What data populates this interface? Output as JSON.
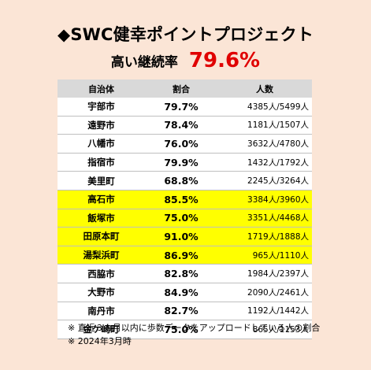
{
  "header": {
    "title": "◆SWC健幸ポイントプロジェクト",
    "subtitle_label": "高い継続率",
    "subtitle_rate": "79.6%"
  },
  "table": {
    "columns": [
      "自治体",
      "割合",
      "人数"
    ],
    "rows": [
      {
        "city": "宇部市",
        "rate": "79.7%",
        "people": "4385人/5499人",
        "highlight": false
      },
      {
        "city": "遠野市",
        "rate": "78.4%",
        "people": "1181人/1507人",
        "highlight": false
      },
      {
        "city": "八幡市",
        "rate": "76.0%",
        "people": "3632人/4780人",
        "highlight": false
      },
      {
        "city": "指宿市",
        "rate": "79.9%",
        "people": "1432人/1792人",
        "highlight": false
      },
      {
        "city": "美里町",
        "rate": "68.8%",
        "people": "2245人/3264人",
        "highlight": false
      },
      {
        "city": "高石市",
        "rate": "85.5%",
        "people": "3384人/3960人",
        "highlight": true
      },
      {
        "city": "飯塚市",
        "rate": "75.0%",
        "people": "3351人/4468人",
        "highlight": true
      },
      {
        "city": "田原本町",
        "rate": "91.0%",
        "people": "1719人/1888人",
        "highlight": true
      },
      {
        "city": "湯梨浜町",
        "rate": "86.9%",
        "people": "965人/1110人",
        "highlight": true
      },
      {
        "city": "西脇市",
        "rate": "82.8%",
        "people": "1984人/2397人",
        "highlight": false
      },
      {
        "city": "大野市",
        "rate": "84.9%",
        "people": "2090人/2461人",
        "highlight": false
      },
      {
        "city": "南丹市",
        "rate": "82.7%",
        "people": "1192人/1442人",
        "highlight": false
      },
      {
        "city": "金ケ崎町",
        "rate": "75.0%",
        "people": "865人/1153人",
        "highlight": false
      }
    ],
    "highlight_color": "#ffff00",
    "header_color": "#d9d9d9"
  },
  "notes": [
    "※ 直近３カ月以内に歩数データをアップロードしている人の割合",
    "※ 2024年3月時"
  ],
  "colors": {
    "background": "#fbe5d6",
    "rate_accent": "#e00000"
  }
}
